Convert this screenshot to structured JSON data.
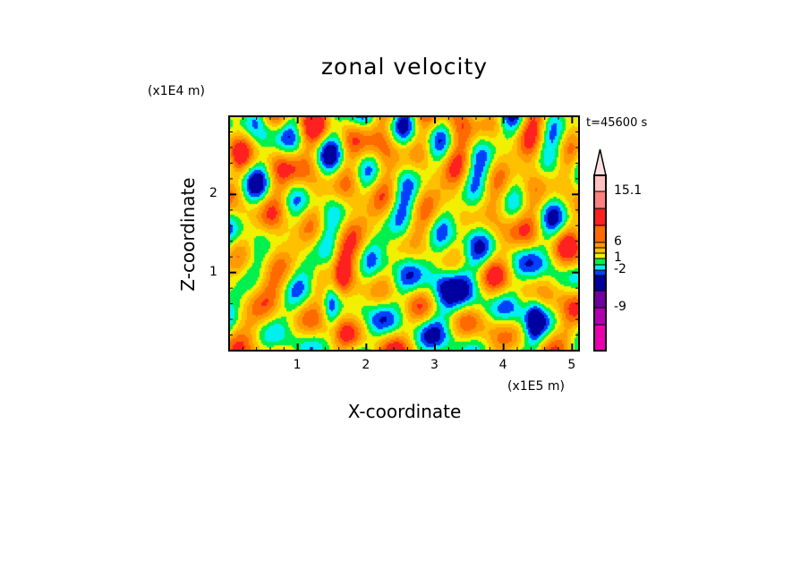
{
  "chart_data": {
    "type": "heatmap",
    "title": "zonal velocity",
    "xlabel": "X-coordinate",
    "ylabel": "Z-coordinate",
    "x_unit": "(x1E5 m)",
    "y_unit": "(x1E4 m)",
    "time_label": "t=45600 s",
    "xlim": [
      0,
      5.1
    ],
    "ylim": [
      0,
      3.0
    ],
    "xticks": [
      "1",
      "2",
      "3",
      "4",
      "5"
    ],
    "xtick_values": [
      1,
      2,
      3,
      4,
      5
    ],
    "yticks": [
      "1",
      "2"
    ],
    "ytick_values": [
      1,
      2
    ],
    "colorbar": {
      "colors": [
        "#e800b0",
        "#b000b0",
        "#7000a0",
        "#0000a0",
        "#0040ff",
        "#00f0f0",
        "#00f050",
        "#f0f000",
        "#ffc000",
        "#ff9a00",
        "#ff6a00",
        "#ff2020",
        "#ff8080",
        "#ffc0c0",
        "#ffe0e0"
      ],
      "labels": [
        "15.1",
        "6",
        "1",
        "-2",
        "-9"
      ],
      "label_boundary_index": [
        13,
        10,
        7,
        5,
        2
      ]
    }
  }
}
